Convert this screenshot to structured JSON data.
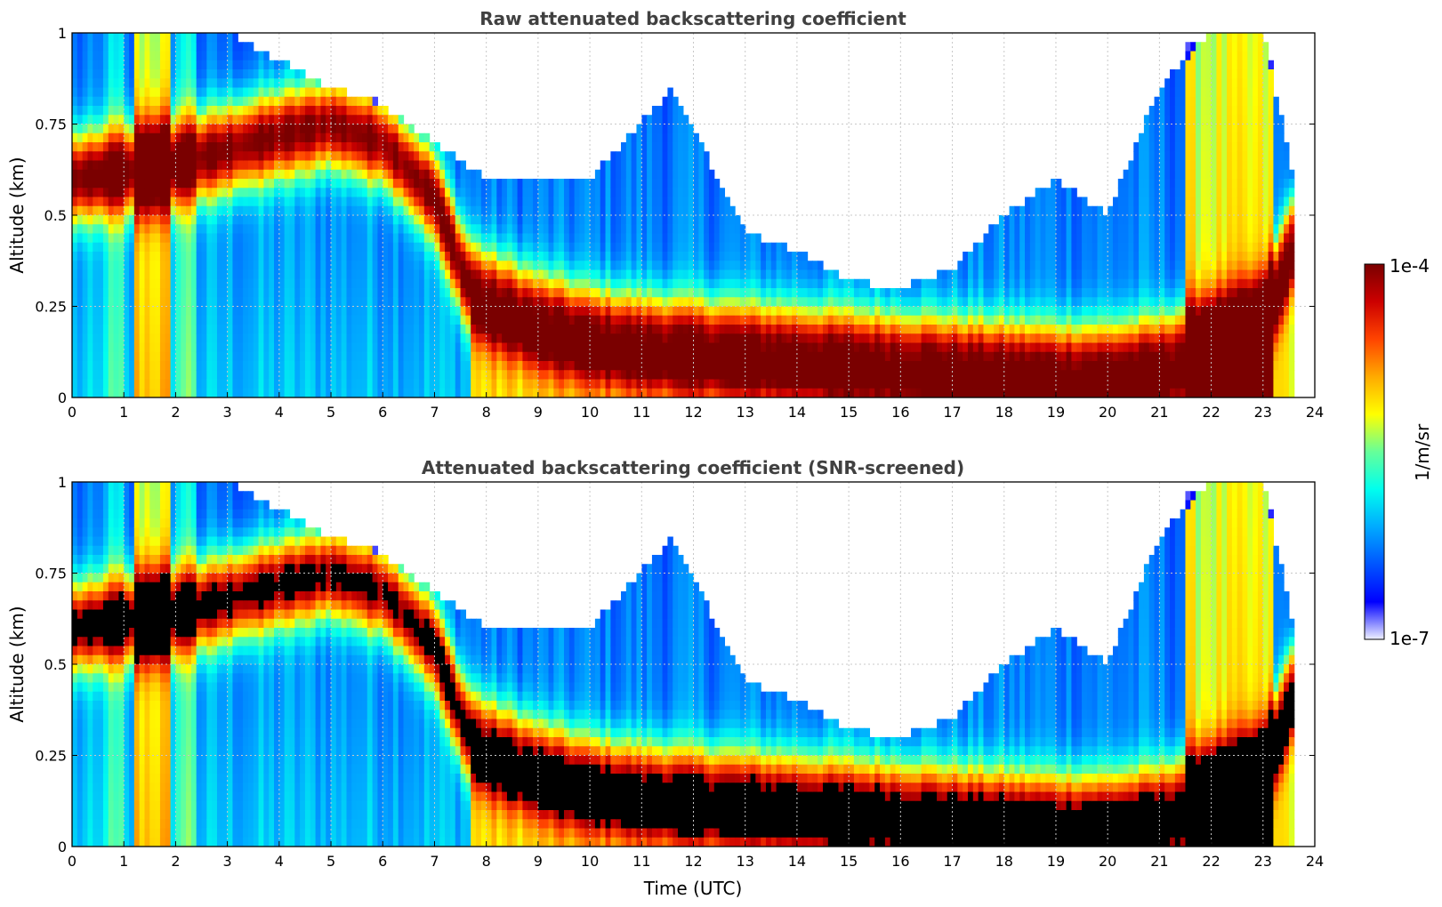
{
  "chart_data": [
    {
      "type": "heatmap",
      "title": "Raw attenuated backscattering coefficient",
      "xlabel": "",
      "ylabel": "Altitude (km)",
      "xlim": [
        0,
        24
      ],
      "ylim": [
        0,
        1
      ],
      "xticks": [
        "0",
        "1",
        "2",
        "3",
        "4",
        "5",
        "6",
        "7",
        "8",
        "9",
        "10",
        "11",
        "12",
        "13",
        "14",
        "15",
        "16",
        "17",
        "18",
        "19",
        "20",
        "21",
        "22",
        "23",
        "24"
      ],
      "yticks": [
        "0",
        "0.25",
        "0.5",
        "0.75",
        "1"
      ],
      "grid": true,
      "data_end_hour": 23.6,
      "layer": {
        "description": "aerosol/cloud layer center altitude (km) vs hour",
        "hours": [
          0,
          1,
          2,
          3,
          4,
          5,
          6,
          7,
          7.6,
          8,
          9,
          10,
          11,
          12,
          13,
          14,
          15,
          16,
          17,
          18,
          19,
          20,
          21,
          22,
          23,
          23.6
        ],
        "center_km": [
          0.6,
          0.62,
          0.64,
          0.68,
          0.72,
          0.75,
          0.7,
          0.55,
          0.32,
          0.28,
          0.22,
          0.18,
          0.16,
          0.15,
          0.14,
          0.13,
          0.12,
          0.11,
          0.1,
          0.09,
          0.08,
          0.08,
          0.1,
          0.15,
          0.2,
          0.45
        ]
      },
      "top_extent": {
        "description": "approximate top of detected signal (km) vs hour",
        "hours": [
          0,
          3,
          5,
          6,
          7,
          8,
          10,
          11.6,
          13,
          14,
          15,
          16,
          17,
          18,
          19,
          20,
          21,
          22,
          23,
          23.6
        ],
        "top_km": [
          1,
          1,
          0.85,
          0.8,
          0.7,
          0.6,
          0.6,
          0.85,
          0.45,
          0.4,
          0.32,
          0.3,
          0.35,
          0.5,
          0.6,
          0.5,
          0.85,
          1,
          1,
          0.6
        ]
      },
      "colorscale": {
        "min": "1e-7",
        "max": "1e-4",
        "units": "1/m/sr",
        "log": true
      }
    },
    {
      "type": "heatmap",
      "title": "Attenuated backscattering coefficient (SNR-screened)",
      "xlabel": "Time (UTC)",
      "ylabel": "Altitude (km)",
      "xlim": [
        0,
        24
      ],
      "ylim": [
        0,
        1
      ],
      "xticks": [
        "0",
        "1",
        "2",
        "3",
        "4",
        "5",
        "6",
        "7",
        "8",
        "9",
        "10",
        "11",
        "12",
        "13",
        "14",
        "15",
        "16",
        "17",
        "18",
        "19",
        "20",
        "21",
        "22",
        "23",
        "24"
      ],
      "yticks": [
        "0",
        "0.25",
        "0.5",
        "0.75",
        "1"
      ],
      "grid": true,
      "data_end_hour": 23.6,
      "colorscale": {
        "min": "1e-7",
        "max": "1e-4",
        "units": "1/m/sr",
        "log": true
      }
    }
  ],
  "colorbar": {
    "label": "1/m/sr",
    "max_label": "1e-4",
    "min_label": "1e-7",
    "colors": [
      "#eef0ff",
      "#0000ff",
      "#0055ff",
      "#00aaff",
      "#00ffee",
      "#66ff99",
      "#ffff00",
      "#ffaa00",
      "#ff4400",
      "#cc0000",
      "#7a0000"
    ]
  }
}
